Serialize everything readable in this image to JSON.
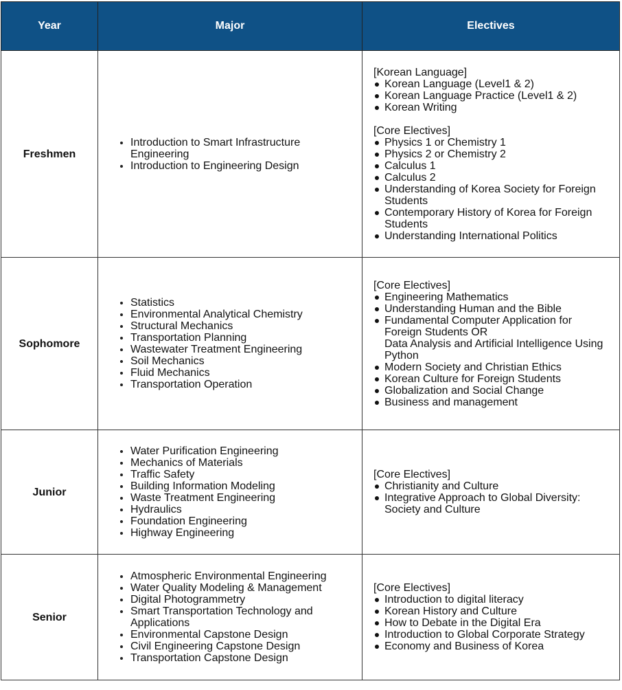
{
  "header": {
    "year": "Year",
    "major": "Major",
    "electives": "Electives"
  },
  "colors": {
    "header_bg": "#0f5186",
    "header_text": "#ffffff"
  },
  "rows": [
    {
      "year": "Freshmen",
      "major": [
        "Introduction to Smart Infrastructure Engineering",
        "Introduction to Engineering Design"
      ],
      "electives": [
        {
          "heading": "[Korean Language]",
          "items": [
            [
              "Korean Language (Level1 & 2)"
            ],
            [
              "Korean Language Practice (Level1 & 2)"
            ],
            [
              "Korean Writing"
            ]
          ]
        },
        {
          "heading": "[Core Electives]",
          "items": [
            [
              "Physics 1 or Chemistry 1"
            ],
            [
              "Physics 2 or Chemistry 2"
            ],
            [
              "Calculus 1"
            ],
            [
              "Calculus 2"
            ],
            [
              "Understanding of Korea Society for Foreign Students"
            ],
            [
              "Contemporary History of Korea for Foreign Students"
            ],
            [
              "Understanding International Politics"
            ]
          ]
        }
      ]
    },
    {
      "year": "Sophomore",
      "major": [
        "Statistics",
        "Environmental Analytical Chemistry",
        "Structural Mechanics",
        "Transportation Planning",
        "Wastewater Treatment Engineering",
        "Soil Mechanics",
        "Fluid Mechanics",
        "Transportation Operation"
      ],
      "electives": [
        {
          "heading": "[Core Electives]",
          "items": [
            [
              "Engineering Mathematics"
            ],
            [
              "Understanding Human and the Bible"
            ],
            [
              "Fundamental Computer Application for Foreign Students OR",
              "Data Analysis and Artificial Intelligence Using Python"
            ],
            [
              "Modern Society and Christian Ethics"
            ],
            [
              "Korean Culture for Foreign Students"
            ],
            [
              "Globalization and Social Change"
            ],
            [
              "Business and management"
            ]
          ]
        }
      ]
    },
    {
      "year": "Junior",
      "major": [
        "Water Purification Engineering",
        "Mechanics of Materials",
        "Traffic Safety",
        "Building Information Modeling",
        "Waste Treatment Engineering",
        "Hydraulics",
        "Foundation Engineering",
        "Highway Engineering"
      ],
      "electives": [
        {
          "heading": "[Core Electives]",
          "items": [
            [
              "Christianity and Culture"
            ],
            [
              "Integrative Approach to Global Diversity: Society and Culture"
            ]
          ]
        }
      ]
    },
    {
      "year": "Senior",
      "major": [
        "Atmospheric Environmental Engineering",
        "Water Quality Modeling & Management",
        "Digital Photogrammetry",
        "Smart Transportation Technology and Applications",
        "Environmental Capstone Design",
        "Civil Engineering Capstone Design",
        "Transportation Capstone Design"
      ],
      "electives": [
        {
          "heading": "[Core Electives]",
          "items": [
            [
              "Introduction to digital literacy"
            ],
            [
              "Korean History and Culture"
            ],
            [
              "How to Debate in the Digital Era"
            ],
            [
              "Introduction to Global Corporate Strategy"
            ],
            [
              "Economy and Business of Korea"
            ]
          ]
        }
      ]
    }
  ]
}
